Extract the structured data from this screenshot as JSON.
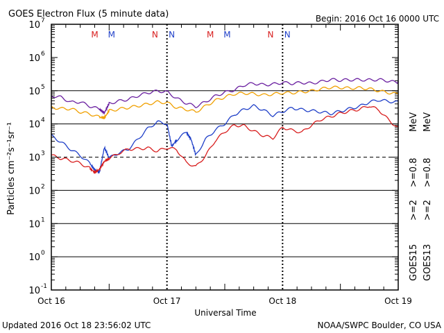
{
  "chart_data": {
    "type": "line",
    "title": "GOES Electron Flux (5 minute data)",
    "begin_label": "Begin: 2016 Oct 16 0000 UTC",
    "xlabel": "Universal Time",
    "ylabel": "Particles cm⁻²s⁻¹sr⁻¹",
    "yscale": "log",
    "ylim": [
      0.1,
      10000000
    ],
    "y_ticks": [
      {
        "value": 0.1,
        "base": "10",
        "exp": "-1"
      },
      {
        "value": 1,
        "base": "10",
        "exp": "0"
      },
      {
        "value": 10,
        "base": "10",
        "exp": "1"
      },
      {
        "value": 100,
        "base": "10",
        "exp": "2"
      },
      {
        "value": 1000,
        "base": "10",
        "exp": "3"
      },
      {
        "value": 10000,
        "base": "10",
        "exp": "4"
      },
      {
        "value": 100000,
        "base": "10",
        "exp": "5"
      },
      {
        "value": 1000000,
        "base": "10",
        "exp": "6"
      },
      {
        "value": 10000000,
        "base": "10",
        "exp": "7"
      }
    ],
    "x_unit": "hours since 2016 Oct 16 0000 UTC",
    "xlim": [
      0,
      72
    ],
    "x_ticks": [
      {
        "value": 0,
        "label": "Oct 16"
      },
      {
        "value": 24,
        "label": "Oct 17"
      },
      {
        "value": 48,
        "label": "Oct 18"
      },
      {
        "value": 72,
        "label": "Oct 19"
      }
    ],
    "threshold_lines": [
      {
        "value": 100000,
        "style": "solid"
      },
      {
        "value": 10000,
        "style": "solid"
      },
      {
        "value": 1000,
        "style": "dashed"
      },
      {
        "value": 100,
        "style": "solid"
      },
      {
        "value": 10,
        "style": "solid"
      },
      {
        "value": 1,
        "style": "solid"
      }
    ],
    "markers": [
      {
        "x": 9,
        "label": "M",
        "color": "#d81e1e"
      },
      {
        "x": 12.5,
        "label": "M",
        "color": "#1f3fc8"
      },
      {
        "x": 21.5,
        "label": "N",
        "color": "#d81e1e"
      },
      {
        "x": 25,
        "label": "N",
        "color": "#1f3fc8"
      },
      {
        "x": 33,
        "label": "M",
        "color": "#d81e1e"
      },
      {
        "x": 36.5,
        "label": "M",
        "color": "#1f3fc8"
      },
      {
        "x": 45.5,
        "label": "N",
        "color": "#d81e1e"
      },
      {
        "x": 49,
        "label": "N",
        "color": "#1f3fc8"
      }
    ],
    "series": [
      {
        "name": ">=0.8 MeV",
        "satellite": "GOES15",
        "color": "#6a1fa0",
        "x": [
          0,
          2,
          4,
          6,
          8,
          10,
          11,
          12,
          14,
          16,
          18,
          20,
          22,
          24,
          26,
          28,
          30,
          32,
          34,
          36,
          38,
          40,
          42,
          44,
          46,
          48,
          50,
          52,
          54,
          56,
          58,
          60,
          62,
          64,
          66,
          68,
          70,
          72
        ],
        "y": [
          70000,
          60000,
          40000,
          40000,
          30000,
          25000,
          20000,
          40000,
          50000,
          60000,
          80000,
          100000,
          110000,
          100000,
          60000,
          40000,
          30000,
          40000,
          60000,
          80000,
          100000,
          150000,
          180000,
          170000,
          180000,
          200000,
          180000,
          180000,
          160000,
          170000,
          190000,
          180000,
          190000,
          200000,
          210000,
          230000,
          220000,
          200000
        ]
      },
      {
        "name": ">=0.8 MeV",
        "satellite": "GOES13",
        "color": "#f0a000",
        "x": [
          0,
          2,
          4,
          6,
          8,
          10,
          11,
          12,
          14,
          16,
          18,
          20,
          22,
          24,
          26,
          28,
          30,
          32,
          34,
          36,
          38,
          40,
          42,
          44,
          46,
          48,
          50,
          52,
          54,
          56,
          58,
          60,
          62,
          64,
          66,
          68,
          70,
          72
        ],
        "y": [
          30000,
          26000,
          25000,
          20000,
          18000,
          15000,
          15000,
          25000,
          30000,
          35000,
          40000,
          45000,
          50000,
          45000,
          30000,
          25000,
          20000,
          30000,
          45000,
          60000,
          80000,
          90000,
          90000,
          85000,
          90000,
          95000,
          90000,
          90000,
          90000,
          100000,
          110000,
          110000,
          110000,
          120000,
          120000,
          110000,
          100000,
          90000
        ]
      },
      {
        "name": ">=2 MeV",
        "satellite": "GOES15",
        "color": "#1f3fc8",
        "x": [
          0,
          2,
          4,
          6,
          8,
          9,
          10,
          11,
          12,
          14,
          16,
          18,
          20,
          22,
          24,
          25,
          26,
          28,
          29,
          30,
          32,
          34,
          36,
          38,
          40,
          42,
          44,
          46,
          48,
          50,
          52,
          54,
          56,
          58,
          60,
          62,
          64,
          66,
          68,
          70,
          72
        ],
        "y": [
          4000,
          2500,
          1500,
          1000,
          600,
          400,
          350,
          2000,
          1000,
          1500,
          2000,
          4000,
          8000,
          12000,
          10000,
          2000,
          3000,
          5000,
          3000,
          1000,
          3000,
          6000,
          10000,
          20000,
          30000,
          40000,
          30000,
          20000,
          25000,
          30000,
          25000,
          22000,
          20000,
          18000,
          22000,
          28000,
          35000,
          50000,
          60000,
          55000,
          50000
        ]
      },
      {
        "name": ">=2 MeV",
        "satellite": "GOES13",
        "color": "#d81e1e",
        "x": [
          0,
          2,
          4,
          6,
          8,
          9,
          10,
          11,
          12,
          14,
          16,
          18,
          20,
          22,
          24,
          26,
          28,
          30,
          32,
          34,
          36,
          38,
          40,
          42,
          44,
          46,
          48,
          50,
          52,
          54,
          56,
          58,
          60,
          62,
          64,
          66,
          68,
          70,
          72
        ],
        "y": [
          1000,
          800,
          700,
          600,
          450,
          350,
          450,
          800,
          1000,
          1500,
          2000,
          2000,
          2000,
          1500,
          1800,
          1500,
          600,
          450,
          1000,
          3000,
          6000,
          10000,
          10000,
          7000,
          5000,
          4000,
          8000,
          6000,
          5000,
          8000,
          12000,
          15000,
          20000,
          25000,
          30000,
          40000,
          30000,
          15000,
          8000
        ]
      }
    ]
  },
  "legend": {
    "goes15": "GOES15",
    "goes13": "GOES13",
    "lbl_2_b": ">=2",
    "lbl_2_r": ">=2",
    "lbl_08_p": ">=0.8",
    "lbl_08_o": ">=0.8",
    "mev_1": "MeV",
    "mev_2": "MeV",
    "color_blue": "#1f3fc8",
    "color_red": "#d81e1e",
    "color_purple": "#6a1fa0",
    "color_orange": "#f0a000"
  },
  "footer": {
    "updated": "Updated 2016 Oct 18 23:56:02 UTC",
    "credit": "NOAA/SWPC Boulder, CO USA"
  }
}
